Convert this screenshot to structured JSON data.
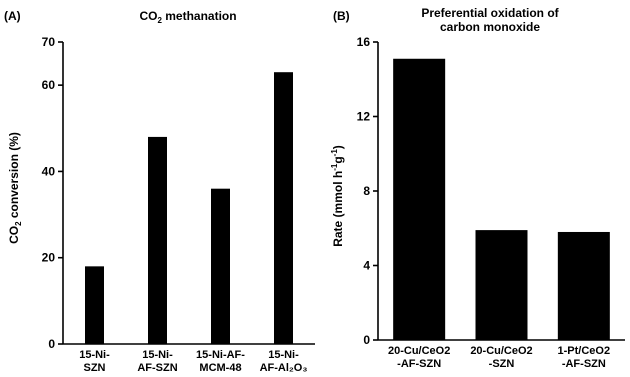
{
  "chart_data": [
    {
      "panel_label": "(A)",
      "type": "bar",
      "title_main": "CO",
      "title_sub": "2",
      "title_rest": " methanation",
      "ylabel_pre": "CO",
      "ylabel_sub": "2",
      "ylabel_rest": " conversion (%)",
      "ylim": [
        0,
        70
      ],
      "yticks": [
        0,
        20,
        40,
        60,
        70
      ],
      "categories": [
        [
          "15-Ni-",
          "SZN"
        ],
        [
          "15-Ni-",
          "AF-SZN"
        ],
        [
          "15-Ni-AF-",
          "MCM-48"
        ],
        [
          "15-Ni-",
          "AF-Al₂O₃"
        ]
      ],
      "values": [
        18,
        48,
        36,
        63
      ],
      "bar_color": "#000000"
    },
    {
      "panel_label": "(B)",
      "type": "bar",
      "title_lines": [
        "Preferential oxidation of",
        "carbon monoxide"
      ],
      "ylabel_pre": "Rate (mmol h",
      "ylabel_sup1": "-1",
      "ylabel_mid": "g",
      "ylabel_sup2": "-1",
      "ylabel_rest": ")",
      "ylim": [
        0,
        16
      ],
      "yticks": [
        0,
        4,
        8,
        12,
        16
      ],
      "categories": [
        [
          "20-Cu/CeO2",
          "-AF-SZN"
        ],
        [
          "20-Cu/CeO2",
          "-SZN"
        ],
        [
          "1-Pt/CeO2",
          "-AF-SZN"
        ]
      ],
      "values": [
        15.1,
        5.9,
        5.8
      ],
      "bar_color": "#000000"
    }
  ]
}
